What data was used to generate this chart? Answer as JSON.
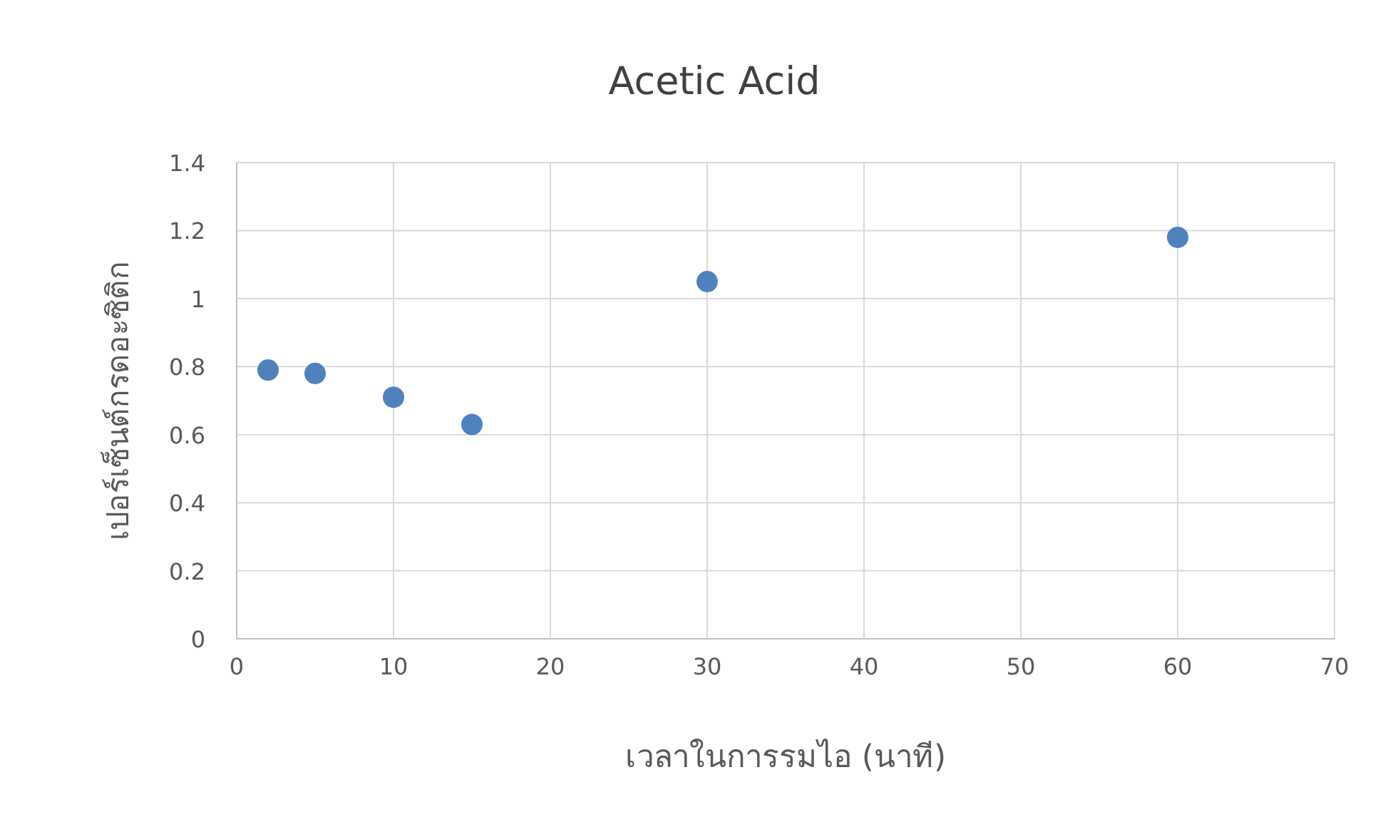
{
  "chart_data": {
    "type": "scatter",
    "title": "Acetic Acid",
    "xlabel": "เวลาในการรมไอ (นาที)",
    "ylabel": "เปอร์เซ็นต์กรดอะซิติก",
    "x": [
      2,
      5,
      10,
      15,
      30,
      60
    ],
    "series": [
      {
        "color": "#4f81bd",
        "values": [
          0.79,
          0.78,
          0.71,
          0.63,
          1.05,
          1.18
        ]
      }
    ],
    "xlim": [
      0,
      70
    ],
    "xticks": [
      0,
      10,
      20,
      30,
      40,
      50,
      60,
      70
    ],
    "ylim": [
      0,
      1.4
    ],
    "yticks": [
      0,
      0.2,
      0.4,
      0.6,
      0.8,
      1,
      1.2,
      1.4
    ],
    "grid": true,
    "marker": "circle"
  }
}
